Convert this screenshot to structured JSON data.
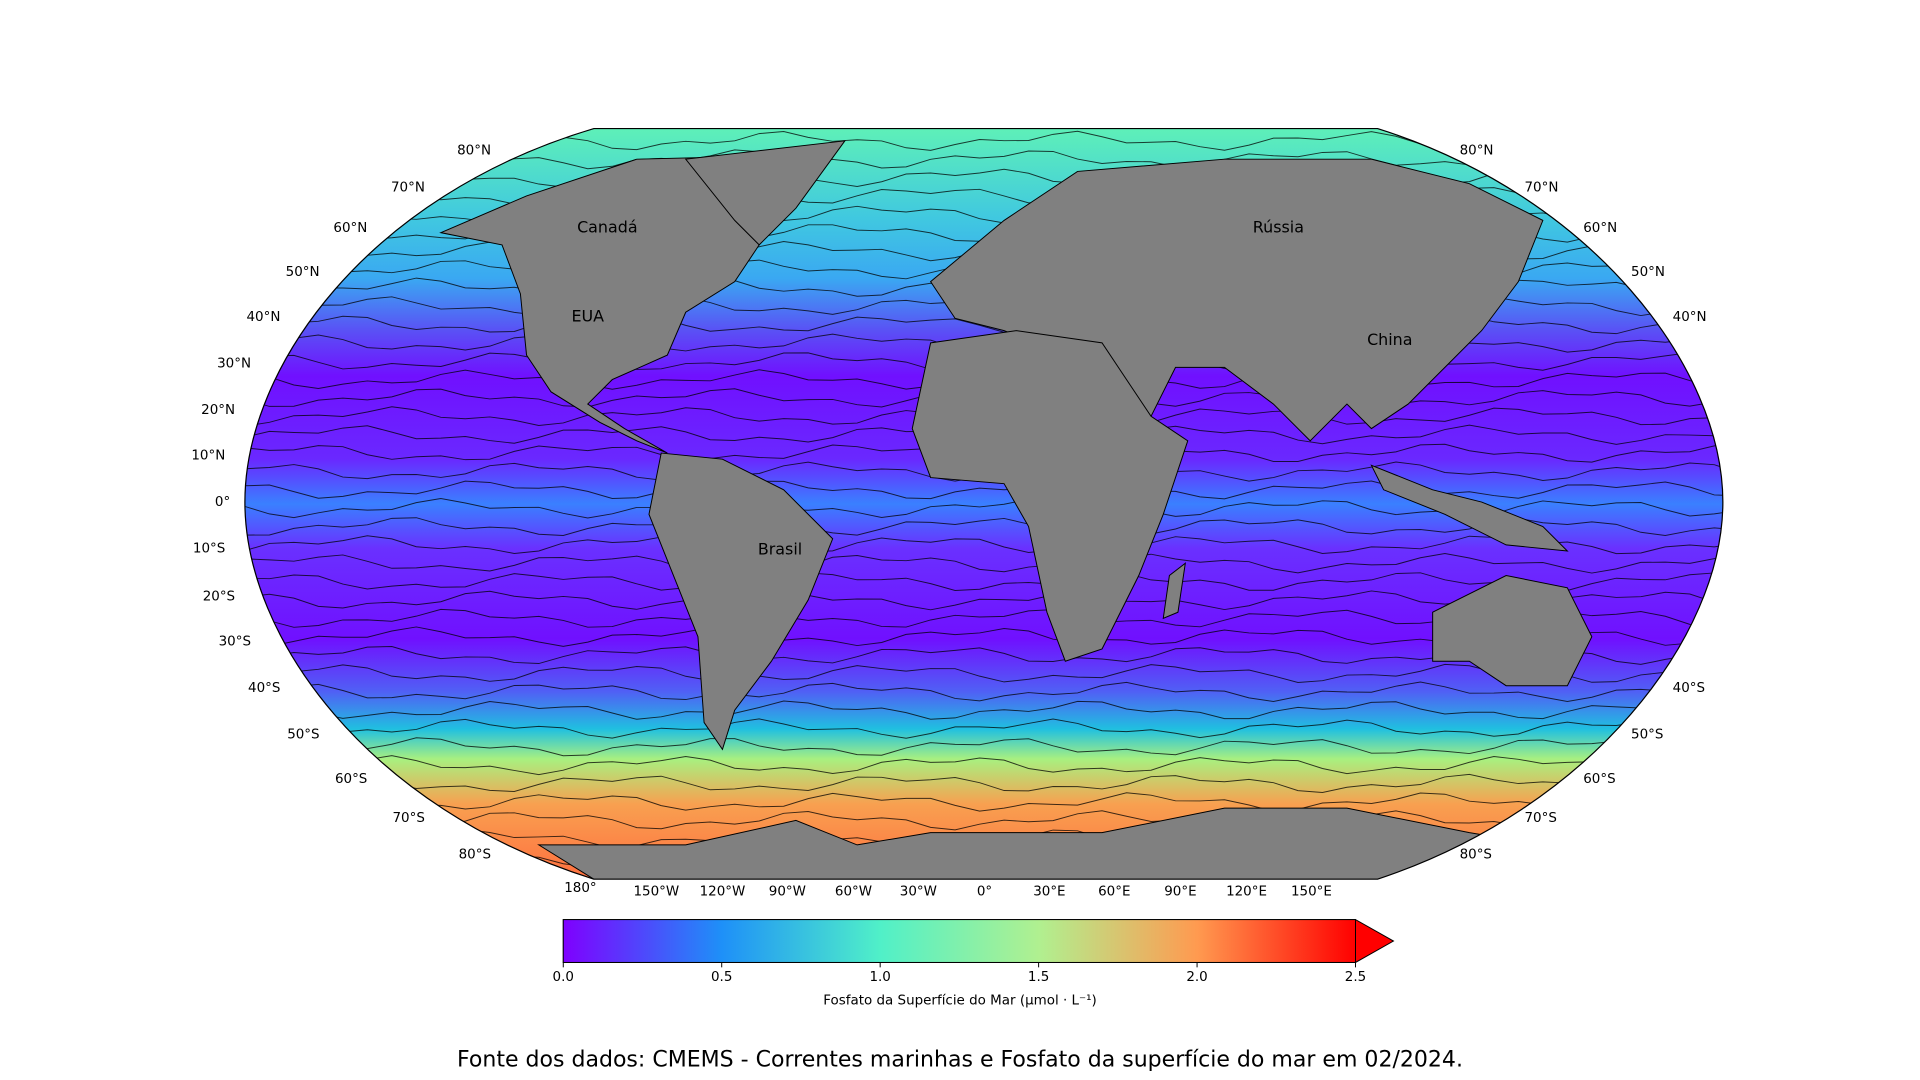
{
  "map": {
    "lat_labels_left": [
      "80°N",
      "70°N",
      "60°N",
      "50°N",
      "40°N",
      "30°N",
      "20°N",
      "10°N",
      "0°",
      "10°S",
      "20°S",
      "30°S",
      "40°S",
      "50°S",
      "60°S",
      "70°S",
      "80°S"
    ],
    "lat_labels_right": [
      "80°N",
      "70°N",
      "60°N",
      "50°N",
      "40°N",
      "40°S",
      "50°S",
      "60°S",
      "70°S",
      "80°S"
    ],
    "lon_labels": [
      "180°",
      "150°W",
      "120°W",
      "90°W",
      "60°W",
      "30°W",
      "0°",
      "30°E",
      "60°E",
      "90°E",
      "120°E",
      "150°E"
    ],
    "region_labels": [
      "Canadá",
      "EUA",
      "Rússia",
      "China",
      "Brasil"
    ]
  },
  "colorbar": {
    "lim": [
      0,
      2.5
    ],
    "ticks": [
      {
        "value": 0,
        "label": "0.0"
      },
      0.5,
      {
        "value": 1,
        "label": "1.0"
      },
      1.5,
      {
        "value": 2,
        "label": "2.0"
      },
      2.5
    ],
    "label": "Fosfato da Superfície do Mar (μmol · L⁻¹)"
  },
  "caption": "Fonte dos dados: CMEMS - Correntes marinhas e Fosfato da superfície do mar em 02/2024."
}
